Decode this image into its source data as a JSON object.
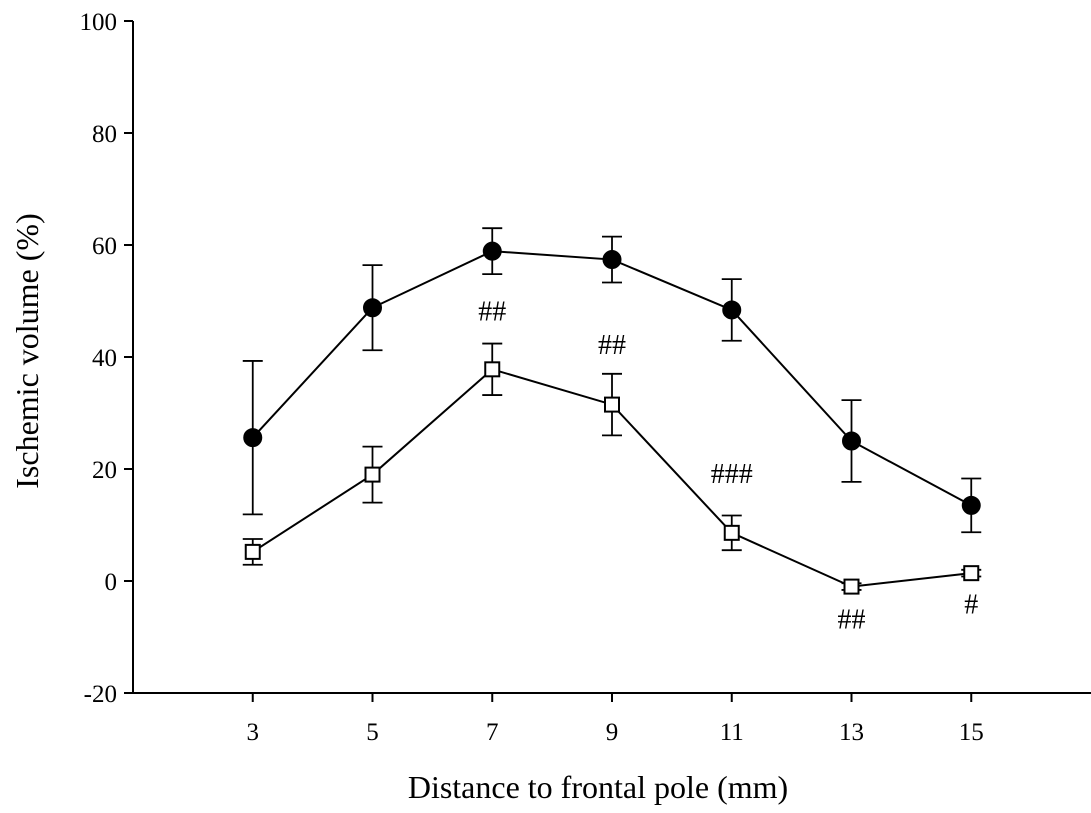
{
  "chart_data": {
    "type": "line",
    "title": "",
    "xlabel": "Distance to frontal pole (mm)",
    "ylabel": "Ischemic volume (%)",
    "x": [
      3,
      5,
      7,
      9,
      11,
      13,
      15
    ],
    "xlim": [
      1,
      17
    ],
    "ylim": [
      -20,
      100
    ],
    "yticks": [
      -20,
      0,
      20,
      40,
      60,
      80,
      100
    ],
    "grid": false,
    "series": [
      {
        "marker": "filled-circle",
        "values": [
          25.6,
          48.8,
          58.9,
          57.4,
          48.4,
          25.0,
          13.5
        ],
        "err": [
          13.7,
          7.6,
          4.1,
          4.1,
          5.5,
          7.3,
          4.8
        ]
      },
      {
        "marker": "open-square",
        "values": [
          5.2,
          19.0,
          37.8,
          31.5,
          8.6,
          -1.0,
          1.4
        ],
        "err": [
          2.3,
          5.0,
          4.6,
          5.5,
          3.1,
          0.6,
          0.6
        ]
      }
    ],
    "annotations": [
      {
        "text": "##",
        "x": 7,
        "y": 46.5
      },
      {
        "text": "##",
        "x": 9,
        "y": 40.5
      },
      {
        "text": "###",
        "x": 11,
        "y": 17.5
      },
      {
        "text": "##",
        "x": 13,
        "y": -8.5
      },
      {
        "text": "#",
        "x": 15,
        "y": -5.8
      }
    ]
  }
}
